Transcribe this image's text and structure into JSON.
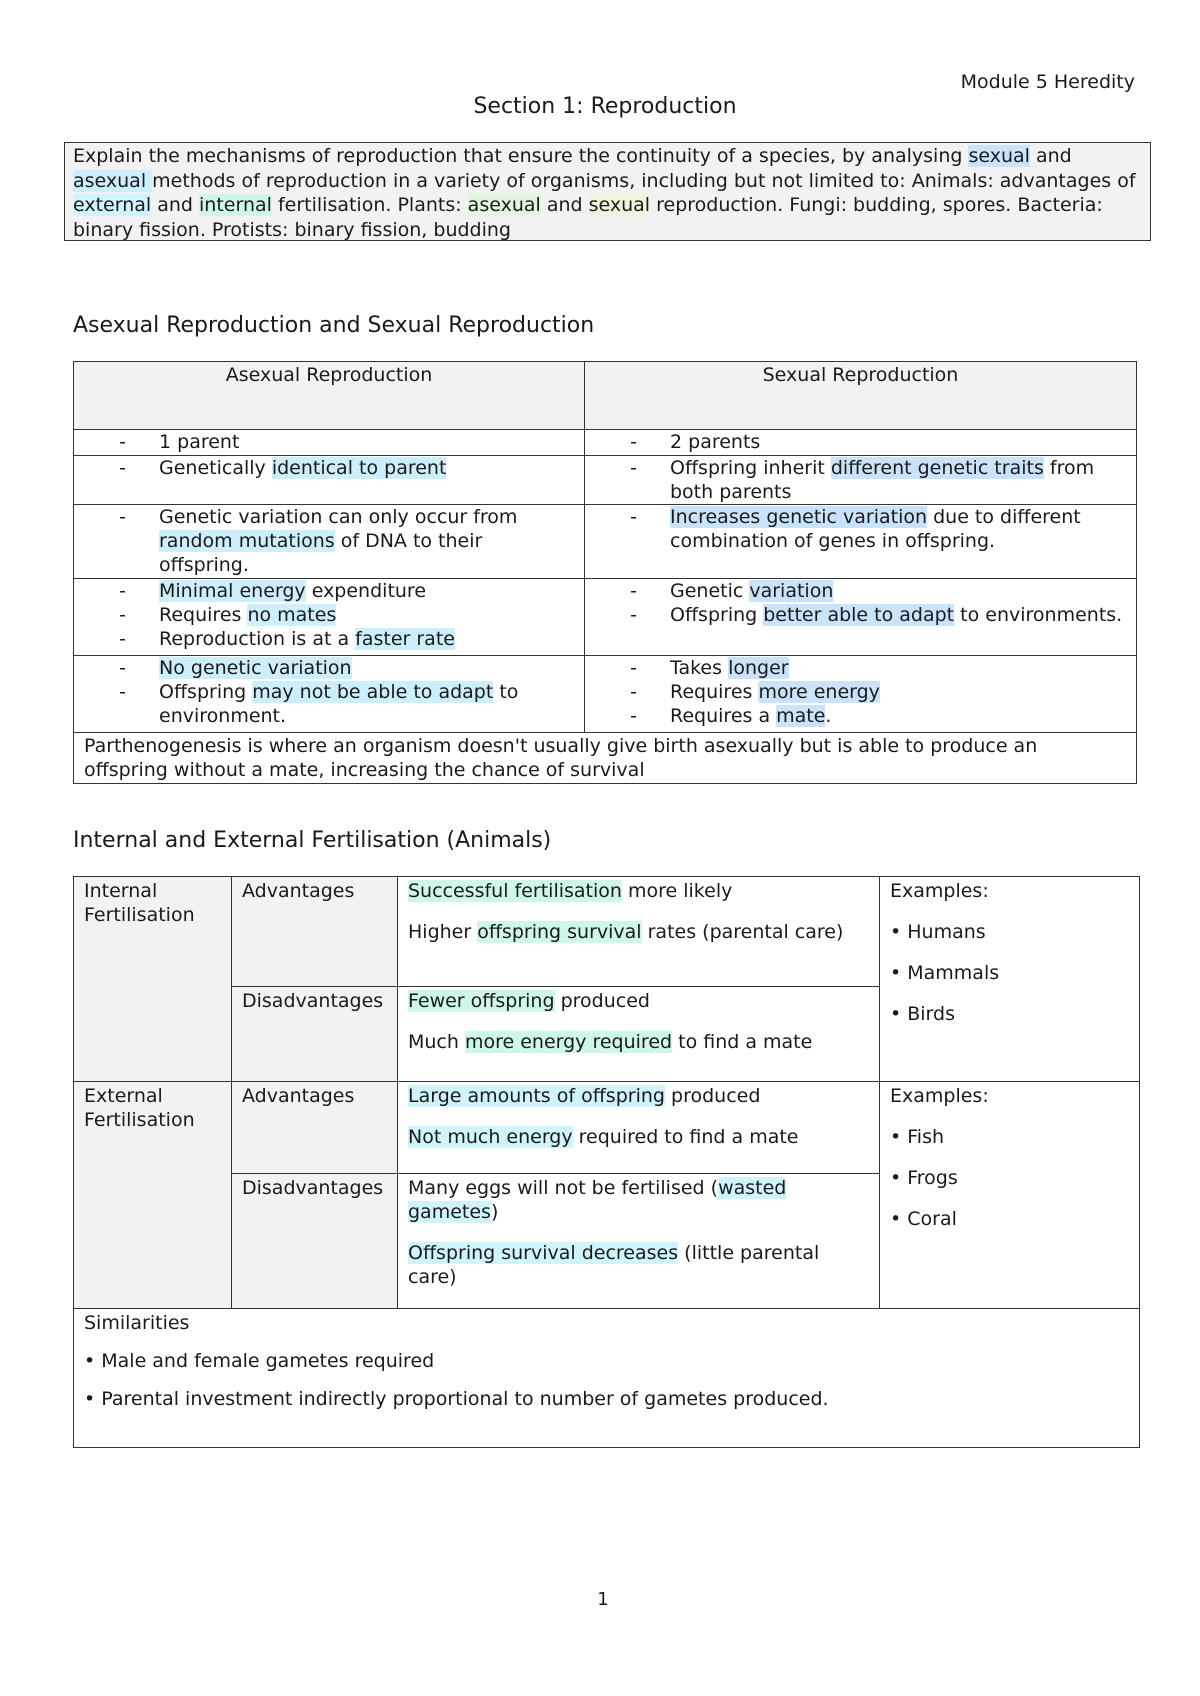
{
  "header": {
    "module": "Module 5 Heredity",
    "title": "Section 1: Reproduction"
  },
  "colors": {
    "blue": "#c9e3fa",
    "cyan": "#cdeffc",
    "ext": "#cff4fb",
    "mint": "#cff6eb",
    "green": "#e2f5df",
    "lime": "#eef5da"
  },
  "objective": [
    {
      "t": "Explain the mechanisms of reproduction that ensure the continuity of a species, by analysing "
    },
    {
      "t": "sexual",
      "h": "blue"
    },
    {
      "t": " and "
    },
    {
      "t": "asexual ",
      "h": "cyan"
    },
    {
      "t": "methods of reproduction in a variety of organisms, including but not limited to: Animals: advantages of "
    },
    {
      "t": "external",
      "h": "ext"
    },
    {
      "t": " and "
    },
    {
      "t": "internal",
      "h": "mint"
    },
    {
      "t": " fertilisation. Plants: "
    },
    {
      "t": "asexual",
      "h": "green"
    },
    {
      "t": " and "
    },
    {
      "t": "sexual",
      "h": "lime"
    },
    {
      "t": " reproduction. Fungi: budding, spores. Bacteria: binary fission.  Protists: binary fission, budding"
    }
  ],
  "asexual_sexual": {
    "heading": "Asexual Reproduction and Sexual Reproduction",
    "col_headers": [
      "Asexual Reproduction",
      "Sexual Reproduction"
    ],
    "dash": "-",
    "rows": [
      {
        "asexual": [
          [
            {
              "t": "1 parent"
            }
          ]
        ],
        "sexual": [
          [
            {
              "t": "2 parents"
            }
          ]
        ]
      },
      {
        "asexual": [
          [
            {
              "t": "Genetically "
            },
            {
              "t": "identical to parent",
              "h": "cyan"
            }
          ]
        ],
        "sexual": [
          [
            {
              "t": "Offspring inherit "
            },
            {
              "t": "different genetic traits",
              "h": "blue"
            },
            {
              "t": " from both parents"
            }
          ]
        ]
      },
      {
        "asexual": [
          [
            {
              "t": "Genetic variation can only occur from "
            },
            {
              "t": "random mutations",
              "h": "cyan"
            },
            {
              "t": " of DNA to their offspring."
            }
          ]
        ],
        "sexual": [
          [
            {
              "t": "Increases genetic variation",
              "h": "blue"
            },
            {
              "t": " due to different combination of genes in offspring."
            }
          ]
        ]
      },
      {
        "asexual": [
          [
            {
              "t": "Minimal energy",
              "h": "cyan"
            },
            {
              "t": " expenditure"
            }
          ],
          [
            {
              "t": "Requires "
            },
            {
              "t": "no mates",
              "h": "cyan"
            }
          ],
          [
            {
              "t": "Reproduction is at a "
            },
            {
              "t": "faster rate",
              "h": "cyan"
            }
          ]
        ],
        "sexual": [
          [
            {
              "t": "Genetic "
            },
            {
              "t": "variation",
              "h": "blue"
            }
          ],
          [
            {
              "t": "Offspring "
            },
            {
              "t": "better able to adapt",
              "h": "blue"
            },
            {
              "t": " to environments."
            }
          ]
        ]
      },
      {
        "asexual": [
          [
            {
              "t": "No genetic variation",
              "h": "cyan"
            }
          ],
          [
            {
              "t": "Offspring "
            },
            {
              "t": "may not be able to adapt",
              "h": "cyan"
            },
            {
              "t": " to environment."
            }
          ]
        ],
        "sexual": [
          [
            {
              "t": "Takes "
            },
            {
              "t": "longer",
              "h": "blue"
            }
          ],
          [
            {
              "t": "Requires "
            },
            {
              "t": "more energy",
              "h": "blue"
            }
          ],
          [
            {
              "t": "Requires a "
            },
            {
              "t": "mate",
              "h": "blue"
            },
            {
              "t": "."
            }
          ]
        ]
      }
    ],
    "note": "Parthenogenesis is where an organism doesn't usually give birth asexually but is able to produce an offspring without a mate, increasing the chance of survival"
  },
  "fertilisation": {
    "heading": "Internal and External Fertilisation (Animals)",
    "groups": [
      {
        "name": "Internal Fertilisation",
        "advantages_label": "Advantages",
        "advantages": [
          [
            {
              "t": "Successful fertilisation",
              "h": "mint"
            },
            {
              "t": " more likely"
            }
          ],
          [
            {
              "t": "Higher "
            },
            {
              "t": "offspring survival",
              "h": "mint"
            },
            {
              "t": " rates (parental care)"
            }
          ]
        ],
        "disadvantages_label": "Disadvantages",
        "disadvantages": [
          [
            {
              "t": "Fewer offspring",
              "h": "mint"
            },
            {
              "t": " produced"
            }
          ],
          [
            {
              "t": "Much "
            },
            {
              "t": "more energy required",
              "h": "mint"
            },
            {
              "t": " to find a mate"
            }
          ]
        ],
        "examples_label": "Examples:",
        "examples": [
          "Humans",
          "Mammals",
          "Birds"
        ]
      },
      {
        "name": "External Fertilisation",
        "advantages_label": "Advantages",
        "advantages": [
          [
            {
              "t": "Large amounts of offspring",
              "h": "ext"
            },
            {
              "t": " produced"
            }
          ],
          [
            {
              "t": "Not much energy",
              "h": "ext"
            },
            {
              "t": " required to find a mate"
            }
          ]
        ],
        "disadvantages_label": "Disadvantages",
        "disadvantages": [
          [
            {
              "t": "Many eggs will not be fertilised ("
            },
            {
              "t": "wasted gametes",
              "h": "ext"
            },
            {
              "t": ")"
            }
          ],
          [
            {
              "t": "Offspring survival decreases",
              "h": "ext"
            },
            {
              "t": " (little parental care)"
            }
          ]
        ],
        "examples_label": "Examples:",
        "examples": [
          "Fish",
          "Frogs",
          "Coral"
        ]
      }
    ],
    "similarities_label": "Similarities",
    "similarities": [
      "Male and female gametes required",
      "Parental investment indirectly proportional to number of gametes produced."
    ]
  },
  "footer": {
    "page_number": "1"
  }
}
